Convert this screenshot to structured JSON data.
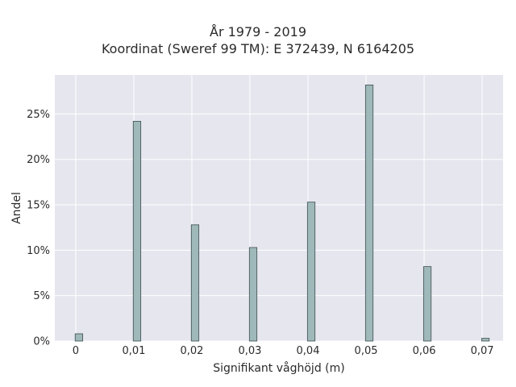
{
  "chart_data": {
    "type": "bar",
    "title": "År 1979 - 2019",
    "subtitle": "Koordinat (Sweref 99 TM): E 372439, N 6164205",
    "xlabel": "Signifikant våghöjd (m)",
    "ylabel": "Andel",
    "x_ticks": [
      "0",
      "0,01",
      "0,02",
      "0,03",
      "0,04",
      "0,05",
      "0,06",
      "0,07"
    ],
    "y_ticks": [
      "0%",
      "5%",
      "10%",
      "15%",
      "20%",
      "25%"
    ],
    "xlim": [
      -0.0036,
      0.0736
    ],
    "ylim": [
      0,
      29.3
    ],
    "x": [
      0,
      0.01,
      0.02,
      0.03,
      0.04,
      0.05,
      0.06,
      0.07
    ],
    "values": [
      0.8,
      24.2,
      12.8,
      10.3,
      15.3,
      28.2,
      8.2,
      0.3
    ],
    "grid": true,
    "colors": {
      "bar": "#9fb8b9",
      "bar_edge": "#3d4f4f",
      "plot_bg": "#e6e6ef",
      "grid": "#ffffff"
    }
  }
}
